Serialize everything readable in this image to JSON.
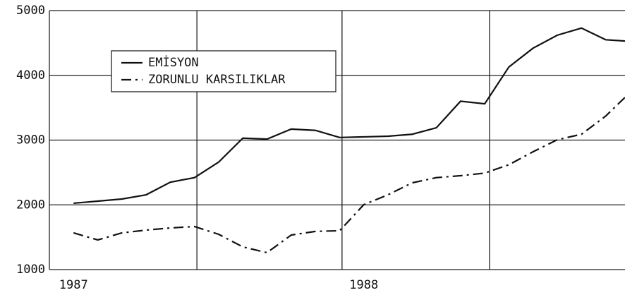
{
  "chart_data": {
    "type": "line",
    "x": [
      0,
      1,
      2,
      3,
      4,
      5,
      6,
      7,
      8,
      9,
      10,
      11,
      12,
      13,
      14,
      15,
      16,
      17,
      18,
      19,
      20,
      21,
      22,
      22.8
    ],
    "series": [
      {
        "name": "EMİSYON",
        "color": "#111111",
        "style": "solid",
        "values": [
          2025,
          2057,
          2090,
          2155,
          2350,
          2420,
          2660,
          3030,
          3015,
          3170,
          3150,
          3040,
          3050,
          3060,
          3090,
          3190,
          3600,
          3560,
          4130,
          4420,
          4620,
          4730,
          4550,
          4530
        ]
      },
      {
        "name": "ZORUNLU KARSILIKLAR",
        "color": "#111111",
        "style": "dash-dot",
        "values": [
          1567,
          1458,
          1567,
          1610,
          1643,
          1665,
          1545,
          1350,
          1262,
          1534,
          1590,
          1600,
          2003,
          2155,
          2340,
          2420,
          2450,
          2490,
          2620,
          2820,
          3005,
          3090,
          3370,
          3660
        ]
      }
    ],
    "xlim": [
      -1,
      22.8
    ],
    "xticks": [
      {
        "value": 0,
        "label": "1987"
      },
      {
        "value": 12,
        "label": "1988"
      }
    ],
    "xgrid_lines": [
      5.1,
      11.1,
      17.2
    ],
    "ylim": [
      1000,
      5000
    ],
    "yticks": [
      1000,
      2000,
      3000,
      4000,
      5000
    ],
    "grid": true,
    "legend": "upper left"
  }
}
